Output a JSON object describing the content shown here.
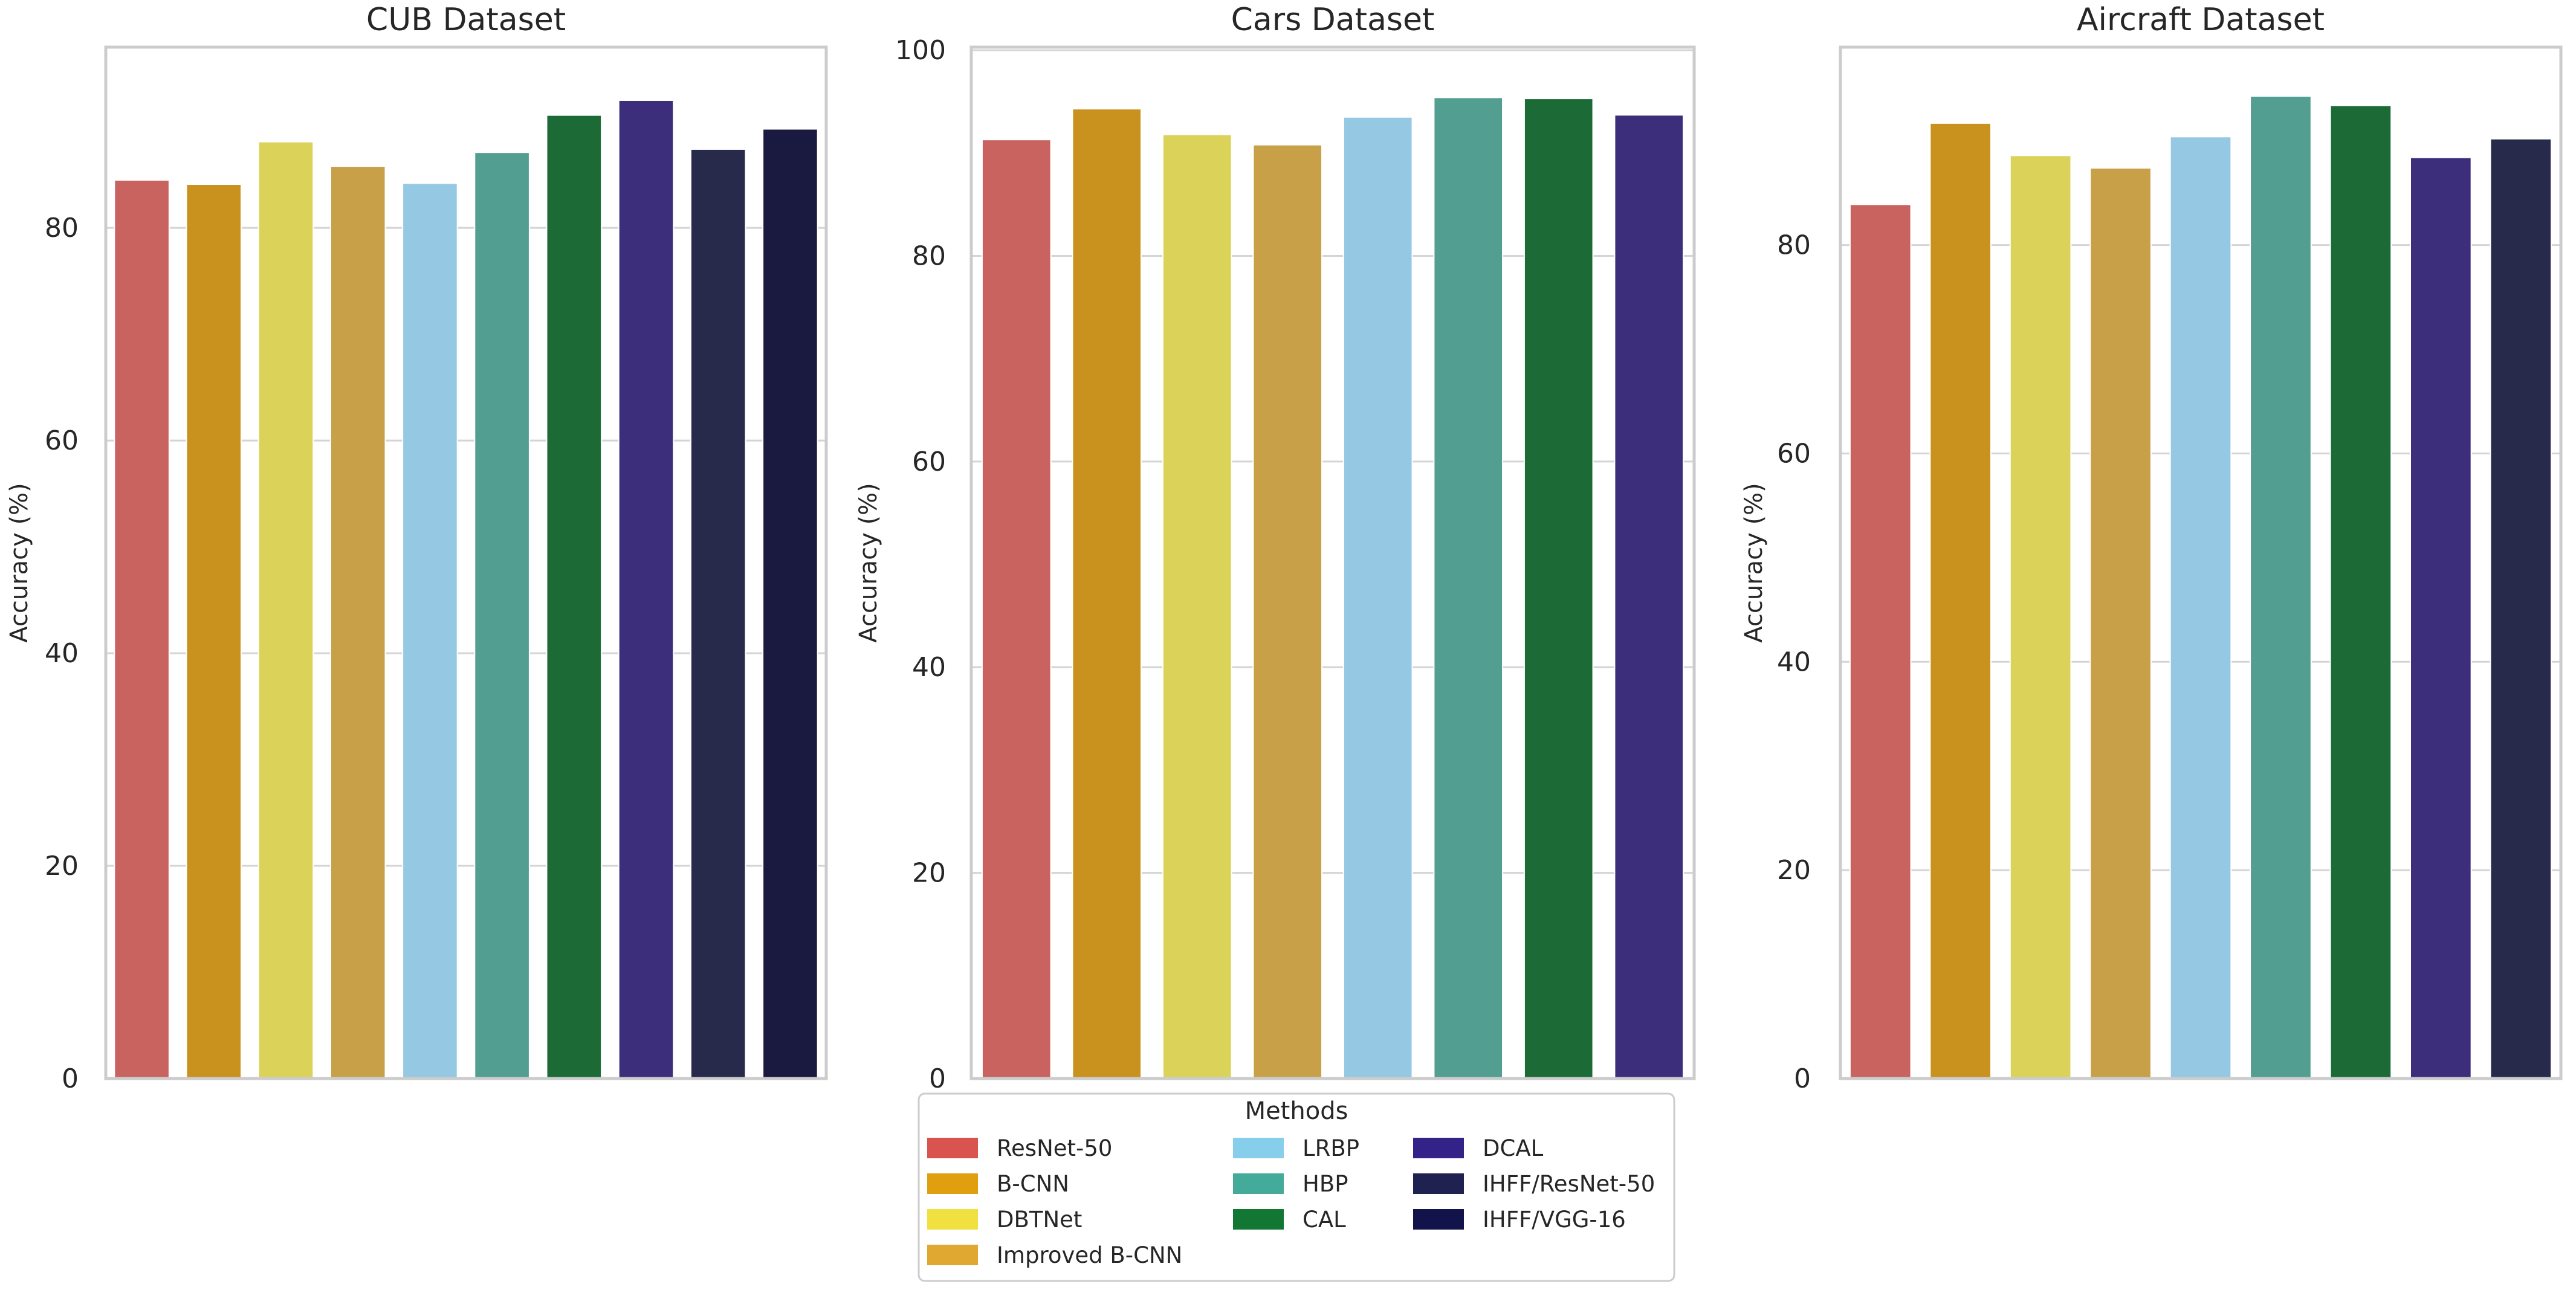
{
  "chart_data": [
    {
      "type": "bar",
      "title": "CUB Dataset",
      "ylabel": "Accuracy (%)",
      "ylim": [
        0,
        97
      ],
      "yticks": [
        0,
        20,
        40,
        60,
        80
      ],
      "grid": "horizontal",
      "categories": [
        "ResNet-50",
        "B-CNN",
        "DBTNet",
        "Improved B-CNN",
        "LRBP",
        "HBP",
        "CAL",
        "DCAL",
        "IHFF/ResNet-50",
        "IHFF/VGG-16"
      ],
      "values": [
        84.5,
        84.1,
        88.1,
        85.8,
        84.2,
        87.1,
        90.6,
        92.0,
        87.4,
        89.3
      ]
    },
    {
      "type": "bar",
      "title": "Cars Dataset",
      "ylabel": "Accuracy (%)",
      "ylim": [
        0,
        100.3
      ],
      "yticks": [
        0,
        20,
        40,
        60,
        80,
        100
      ],
      "grid": "horizontal",
      "categories": [
        "ResNet-50",
        "B-CNN",
        "DBTNet",
        "Improved B-CNN",
        "LRBP",
        "HBP",
        "CAL",
        "DCAL"
      ],
      "values": [
        91.3,
        94.3,
        91.8,
        90.8,
        93.5,
        95.4,
        95.3,
        93.7
      ]
    },
    {
      "type": "bar",
      "title": "Aircraft Dataset",
      "ylabel": "Accuracy (%)",
      "ylim": [
        0,
        99
      ],
      "yticks": [
        0,
        20,
        40,
        60,
        80
      ],
      "grid": "horizontal",
      "categories": [
        "ResNet-50",
        "B-CNN",
        "DBTNet",
        "Improved B-CNN",
        "LRBP",
        "HBP",
        "CAL",
        "DCAL",
        "IHFF/ResNet-50"
      ],
      "values": [
        83.9,
        91.7,
        88.6,
        87.4,
        90.4,
        94.3,
        93.4,
        88.4,
        90.2
      ]
    }
  ],
  "legend": {
    "title": "Methods",
    "placement": "bottom-center",
    "entries": [
      {
        "label": "ResNet-50",
        "color": "#d9534f"
      },
      {
        "label": "B-CNN",
        "color": "#e09f0f"
      },
      {
        "label": "DBTNet",
        "color": "#f0e040"
      },
      {
        "label": "Improved B-CNN",
        "color": "#e0a830"
      },
      {
        "label": "LRBP",
        "color": "#87ceeb"
      },
      {
        "label": "HBP",
        "color": "#44aa99"
      },
      {
        "label": "CAL",
        "color": "#117733"
      },
      {
        "label": "DCAL",
        "color": "#332288"
      },
      {
        "label": "IHFF/ResNet-50",
        "color": "#1f2150"
      },
      {
        "label": "IHFF/VGG-16",
        "color": "#12134a"
      }
    ]
  },
  "bar_colors": {
    "ResNet-50": "#c9635f",
    "B-CNN": "#c9911e",
    "DBTNet": "#dbd25a",
    "Improved B-CNN": "#c8a048",
    "LRBP": "#95c9e3",
    "HBP": "#529e91",
    "CAL": "#1c6b37",
    "DCAL": "#3c2e7a",
    "IHFF/ResNet-50": "#282a4c",
    "IHFF/VGG-16": "#1a1a40"
  }
}
